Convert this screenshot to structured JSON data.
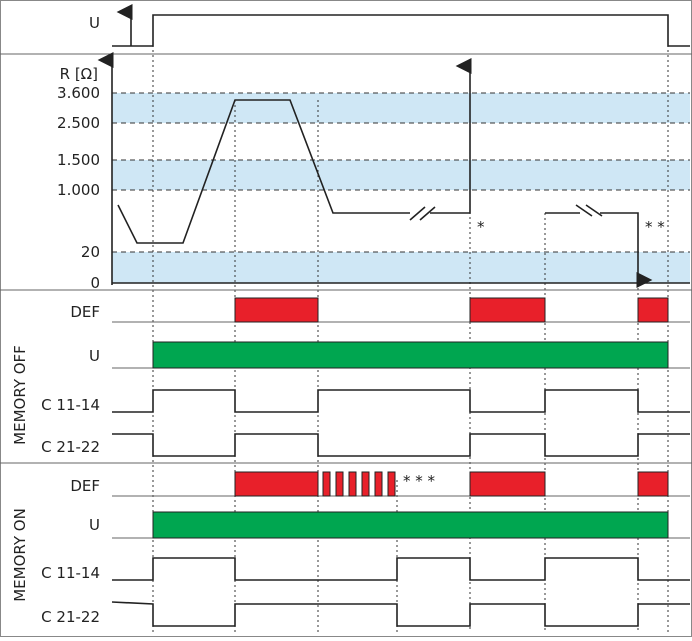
{
  "supply": {
    "label": "U"
  },
  "resistance": {
    "axis_label": "R [Ω]",
    "levels": [
      "3.600",
      "2.500",
      "1.500",
      "1.000",
      "20",
      "0"
    ],
    "notes": [
      "*",
      "* *"
    ]
  },
  "memory_off": {
    "title": "MEMORY OFF",
    "rows": [
      "DEF",
      "U",
      "C 11-14",
      "C 21-22"
    ]
  },
  "memory_on": {
    "title": "MEMORY ON",
    "rows": [
      "DEF",
      "U",
      "C 11-14",
      "C 21-22"
    ],
    "note": "* * *"
  }
}
